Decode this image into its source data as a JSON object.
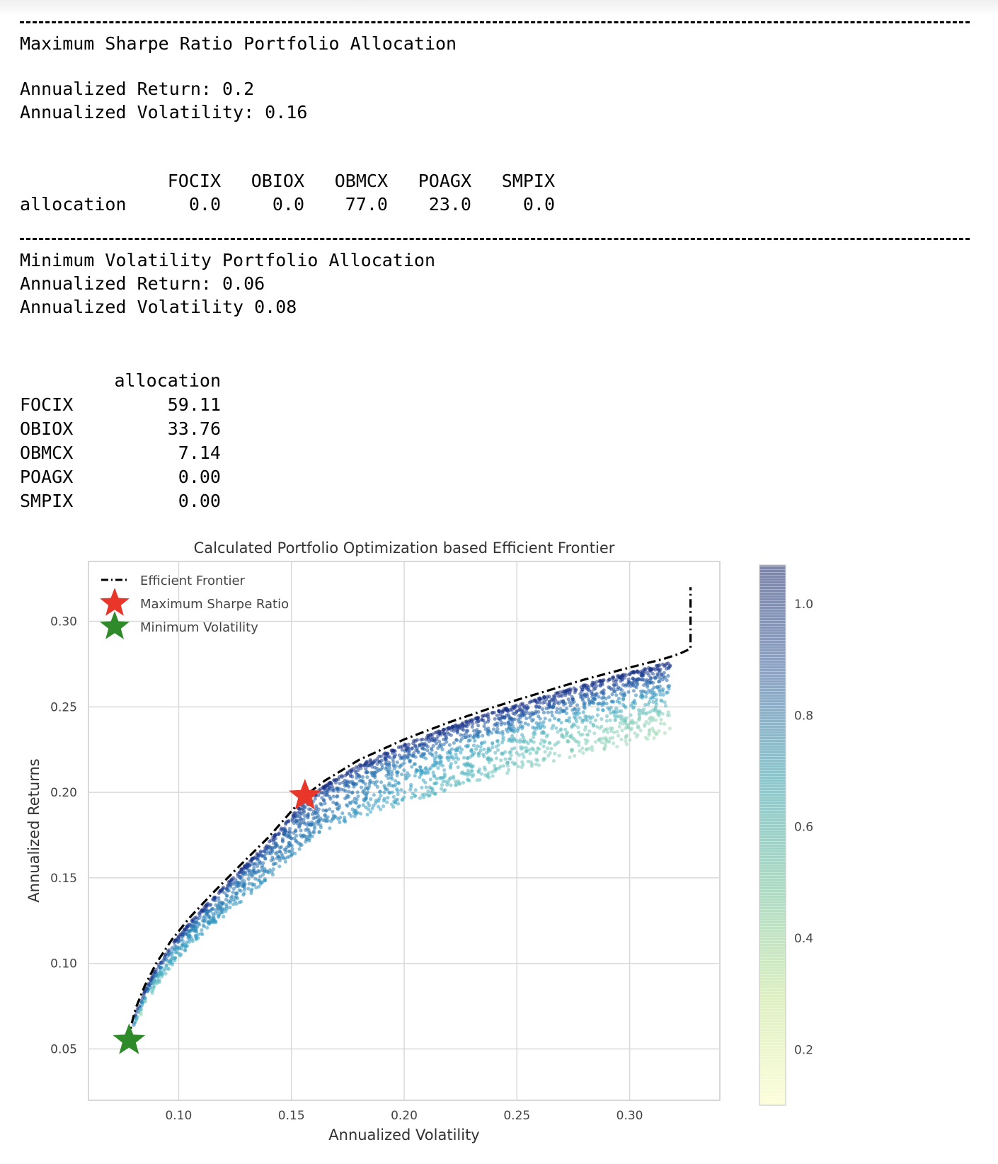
{
  "max_sharpe": {
    "title": "Maximum Sharpe Ratio Portfolio Allocation",
    "return_line": "Annualized Return: 0.2",
    "volatility_line": "Annualized Volatility: 0.16",
    "table": {
      "row_label": "allocation",
      "headers": [
        "FOCIX",
        "OBIOX",
        "OBMCX",
        "POAGX",
        "SMPIX"
      ],
      "values": [
        "0.0",
        "0.0",
        "77.0",
        "23.0",
        "0.0"
      ]
    }
  },
  "min_vol": {
    "title": "Minimum Volatility Portfolio Allocation",
    "return_line": "Annualized Return: 0.06",
    "volatility_line": "Annualized Volatility 0.08",
    "table": {
      "column_header": "allocation",
      "rows": [
        {
          "ticker": "FOCIX",
          "value": "59.11"
        },
        {
          "ticker": "OBIOX",
          "value": "33.76"
        },
        {
          "ticker": "OBMCX",
          "value": "7.14"
        },
        {
          "ticker": "POAGX",
          "value": "0.00"
        },
        {
          "ticker": "SMPIX",
          "value": "0.00"
        }
      ]
    }
  },
  "chart_data": {
    "type": "scatter",
    "title": "Calculated Portfolio Optimization based Efficient Frontier",
    "xlabel": "Annualized Volatility",
    "ylabel": "Annualized Returns",
    "xlim": [
      0.06,
      0.34
    ],
    "ylim": [
      0.02,
      0.335
    ],
    "xticks": [
      "0.10",
      "0.15",
      "0.20",
      "0.25",
      "0.30"
    ],
    "xtick_values": [
      0.1,
      0.15,
      0.2,
      0.25,
      0.3
    ],
    "yticks": [
      "0.05",
      "0.10",
      "0.15",
      "0.20",
      "0.25",
      "0.30"
    ],
    "ytick_values": [
      0.05,
      0.1,
      0.15,
      0.2,
      0.25,
      0.3
    ],
    "grid": true,
    "legend_placement": "upper-left",
    "colormap": "YlGnBu",
    "colorbar": {
      "ticks": [
        "0.2",
        "0.4",
        "0.6",
        "0.8",
        "1.0"
      ],
      "tick_values": [
        0.2,
        0.4,
        0.6,
        0.8,
        1.0
      ],
      "range": [
        0.1,
        1.07
      ]
    },
    "series": [
      {
        "name": "Efficient Frontier",
        "style": "dash-dot",
        "color": "#000000",
        "x": [
          0.078,
          0.079,
          0.081,
          0.085,
          0.09,
          0.097,
          0.105,
          0.115,
          0.127,
          0.14,
          0.15,
          0.156,
          0.165,
          0.18,
          0.2,
          0.22,
          0.24,
          0.26,
          0.28,
          0.3,
          0.315,
          0.322,
          0.327,
          0.327,
          0.327
        ],
        "y": [
          0.055,
          0.064,
          0.074,
          0.087,
          0.1,
          0.114,
          0.127,
          0.141,
          0.157,
          0.174,
          0.189,
          0.198,
          0.207,
          0.219,
          0.231,
          0.241,
          0.25,
          0.258,
          0.266,
          0.273,
          0.278,
          0.281,
          0.284,
          0.3,
          0.32
        ]
      },
      {
        "name": "Maximum Sharpe Ratio",
        "marker": "star",
        "color": "#e8362a",
        "x": [
          0.156
        ],
        "y": [
          0.198
        ]
      },
      {
        "name": "Minimum Volatility",
        "marker": "star",
        "color": "#2f8a2a",
        "x": [
          0.078
        ],
        "y": [
          0.055
        ]
      }
    ],
    "cloud": {
      "description_free": true,
      "x_min": 0.078,
      "x_max": 0.32,
      "points": 2600
    }
  }
}
